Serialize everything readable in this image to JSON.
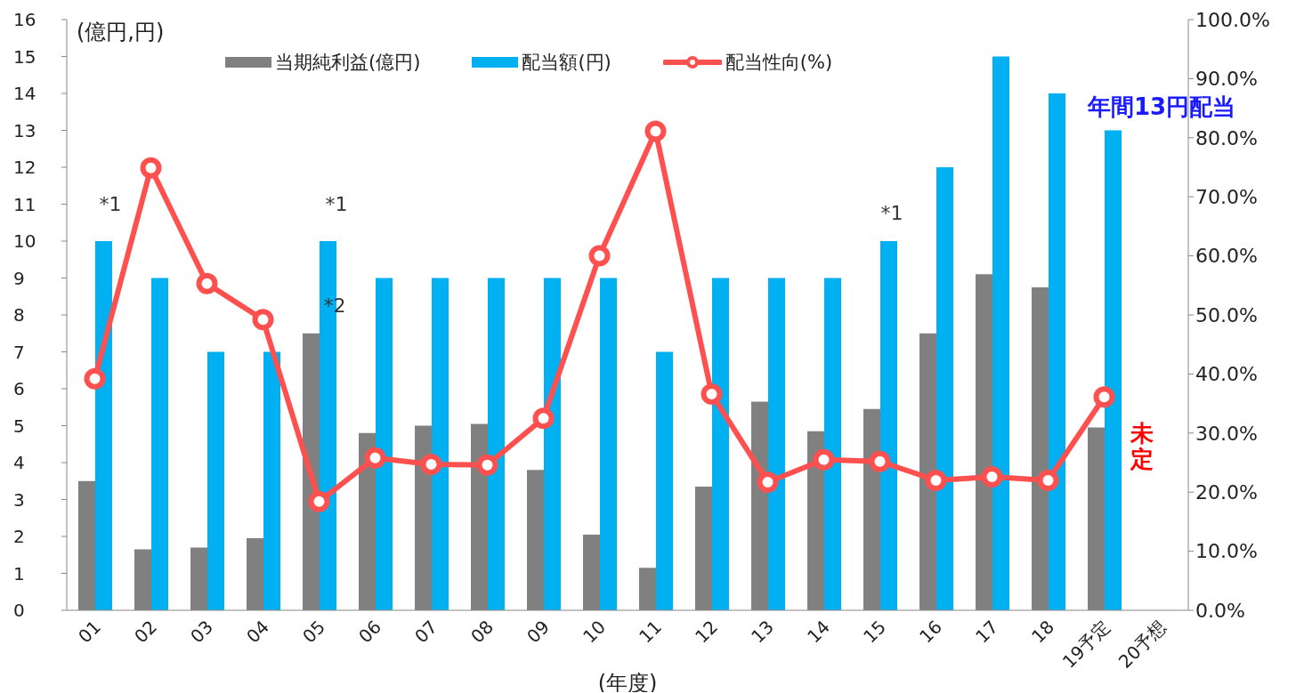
{
  "chart_data": {
    "type": "bar",
    "categories": [
      "01",
      "02",
      "03",
      "04",
      "05",
      "06",
      "07",
      "08",
      "09",
      "10",
      "11",
      "12",
      "13",
      "14",
      "15",
      "16",
      "17",
      "18",
      "19予定",
      "20予想"
    ],
    "series": [
      {
        "name": "当期純利益(億円)",
        "color": "#808080",
        "values": [
          3.5,
          1.65,
          1.7,
          1.95,
          7.5,
          4.8,
          5.0,
          5.05,
          3.8,
          2.05,
          1.15,
          3.35,
          5.65,
          4.85,
          5.45,
          7.5,
          9.1,
          8.75,
          4.95,
          null
        ]
      },
      {
        "name": "配当額(円)",
        "color": "#00b0f0",
        "values": [
          10,
          9,
          7,
          7,
          10,
          9,
          9,
          9,
          9,
          9,
          7,
          9,
          9,
          9,
          10,
          12,
          15,
          14,
          13,
          null
        ]
      },
      {
        "name": "配当性向(%)",
        "type": "line",
        "axis": "y2",
        "color": "#ff5050",
        "marker": "circle",
        "values": [
          39.2,
          74.9,
          55.3,
          49.2,
          18.4,
          25.8,
          24.7,
          24.6,
          32.5,
          60.0,
          81.1,
          36.6,
          21.7,
          25.5,
          25.2,
          22.0,
          22.6,
          22.0,
          36.1,
          null
        ]
      }
    ],
    "ylabel": "(億円,円)",
    "xlabel": "(年度)",
    "ylim": [
      0,
      16
    ],
    "yticks": [
      0,
      1,
      2,
      3,
      4,
      5,
      6,
      7,
      8,
      9,
      10,
      11,
      12,
      13,
      14,
      15,
      16
    ],
    "y2lim": [
      0,
      100
    ],
    "y2ticks": [
      {
        "value": 0,
        "label": "0.0%"
      },
      {
        "value": 10,
        "label": "10.0%"
      },
      {
        "value": 20,
        "label": "20.0%"
      },
      {
        "value": 30,
        "label": "30.0%"
      },
      {
        "value": 40,
        "label": "40.0%"
      },
      {
        "value": 50,
        "label": "50.0%"
      },
      {
        "value": 60,
        "label": "60.0%"
      },
      {
        "value": 70,
        "label": "70.0%"
      },
      {
        "value": 80,
        "label": "80.0%"
      },
      {
        "value": 90,
        "label": "90.0%"
      },
      {
        "value": 100,
        "label": "100.0%"
      }
    ],
    "grid": false,
    "legend": "top",
    "annotations": [
      "*1",
      "*1",
      "*2",
      "*1",
      "年間13円配当",
      "未定"
    ]
  }
}
